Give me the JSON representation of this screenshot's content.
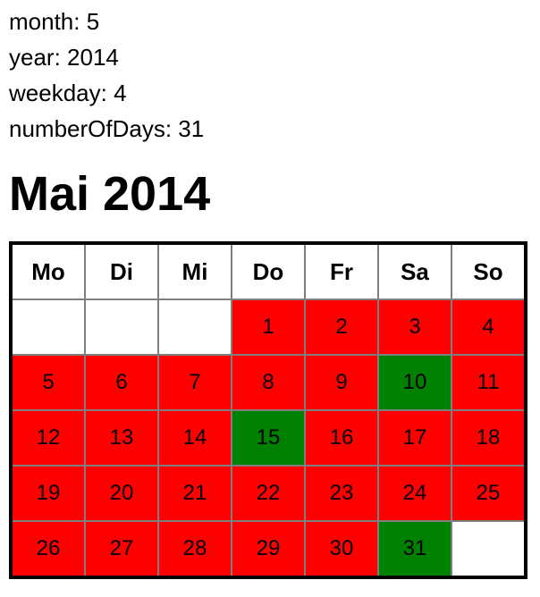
{
  "info": {
    "month": "month: 5",
    "year": "year: 2014",
    "weekday": "weekday: 4",
    "number_of_days": "numberOfDays: 31"
  },
  "calendar": {
    "title": "Mai 2014",
    "weekdays": [
      "Mo",
      "Di",
      "Mi",
      "Do",
      "Fr",
      "Sa",
      "So"
    ],
    "colors": {
      "busy": "#ff0000",
      "free": "#008000",
      "empty": "#ffffff"
    },
    "weeks": [
      [
        null,
        null,
        null,
        {
          "day": "1",
          "status": "busy"
        },
        {
          "day": "2",
          "status": "busy"
        },
        {
          "day": "3",
          "status": "busy"
        },
        {
          "day": "4",
          "status": "busy"
        }
      ],
      [
        {
          "day": "5",
          "status": "busy"
        },
        {
          "day": "6",
          "status": "busy"
        },
        {
          "day": "7",
          "status": "busy"
        },
        {
          "day": "8",
          "status": "busy"
        },
        {
          "day": "9",
          "status": "busy"
        },
        {
          "day": "10",
          "status": "free"
        },
        {
          "day": "11",
          "status": "busy"
        }
      ],
      [
        {
          "day": "12",
          "status": "busy"
        },
        {
          "day": "13",
          "status": "busy"
        },
        {
          "day": "14",
          "status": "busy"
        },
        {
          "day": "15",
          "status": "free"
        },
        {
          "day": "16",
          "status": "busy"
        },
        {
          "day": "17",
          "status": "busy"
        },
        {
          "day": "18",
          "status": "busy"
        }
      ],
      [
        {
          "day": "19",
          "status": "busy"
        },
        {
          "day": "20",
          "status": "busy"
        },
        {
          "day": "21",
          "status": "busy"
        },
        {
          "day": "22",
          "status": "busy"
        },
        {
          "day": "23",
          "status": "busy"
        },
        {
          "day": "24",
          "status": "busy"
        },
        {
          "day": "25",
          "status": "busy"
        }
      ],
      [
        {
          "day": "26",
          "status": "busy"
        },
        {
          "day": "27",
          "status": "busy"
        },
        {
          "day": "28",
          "status": "busy"
        },
        {
          "day": "29",
          "status": "busy"
        },
        {
          "day": "30",
          "status": "busy"
        },
        {
          "day": "31",
          "status": "free"
        },
        null
      ]
    ]
  }
}
